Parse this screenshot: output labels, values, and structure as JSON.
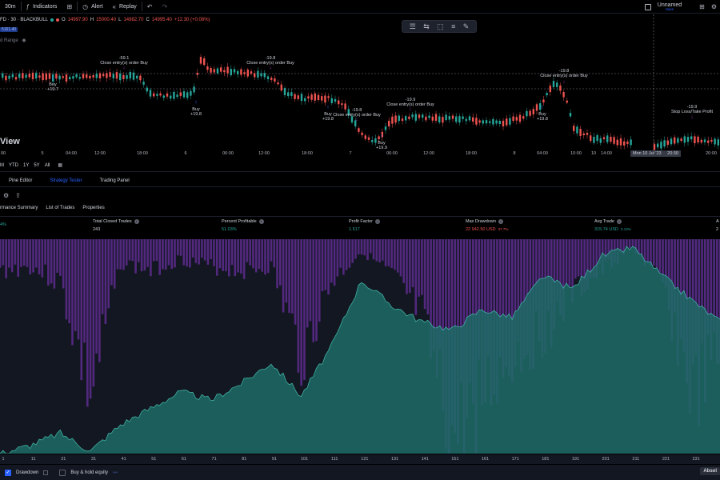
{
  "toolbar": {
    "interval": "30m",
    "indicators": "Indicators",
    "alert": "Alert",
    "replay": "Replay",
    "layout_name": "Unnamed",
    "layout_sub": "Save"
  },
  "legend": {
    "symbol": "FD · 30 · BLACKBULL",
    "o": "O",
    "o_val": "14997.90",
    "h": "H",
    "h_val": "15000.40",
    "l": "L",
    "l_val": "14982.70",
    "c": "C",
    "c_val": "14995.40",
    "change": "+12.30 (+0.08%)",
    "badge": "5161.40",
    "range": "d Range"
  },
  "watermark": "View",
  "annotations": [
    {
      "text": "-59.1",
      "x": 155,
      "y": 56
    },
    {
      "text": "Close entry(s) order Buy",
      "x": 155,
      "y": 62
    },
    {
      "text": "Buy",
      "x": 66,
      "y": 89
    },
    {
      "text": "+19.7",
      "x": 66,
      "y": 95
    },
    {
      "text": "-19.8",
      "x": 338,
      "y": 56
    },
    {
      "text": "Close entry(s) order Buy",
      "x": 338,
      "y": 62
    },
    {
      "text": "Buy",
      "x": 245,
      "y": 120
    },
    {
      "text": "+19.8",
      "x": 245,
      "y": 126
    },
    {
      "text": "-19.9",
      "x": 513,
      "y": 108
    },
    {
      "text": "Close entry(s) order Buy",
      "x": 513,
      "y": 114
    },
    {
      "text": "-19.8",
      "x": 446,
      "y": 121
    },
    {
      "text": "Close entry(s) order Buy",
      "x": 446,
      "y": 127
    },
    {
      "text": "Buy",
      "x": 410,
      "y": 126
    },
    {
      "text": "+19.8",
      "x": 410,
      "y": 132
    },
    {
      "text": "Buy",
      "x": 477,
      "y": 162
    },
    {
      "text": "+19.9",
      "x": 477,
      "y": 168
    },
    {
      "text": "-19.8",
      "x": 705,
      "y": 72
    },
    {
      "text": "Close entry(s) order Buy",
      "x": 705,
      "y": 78
    },
    {
      "text": "Buy",
      "x": 678,
      "y": 126
    },
    {
      "text": "+19.8",
      "x": 678,
      "y": 132
    },
    {
      "text": "-19.9",
      "x": 865,
      "y": 117
    },
    {
      "text": "Stop Loss/Take Profit",
      "x": 865,
      "y": 123
    }
  ],
  "price_axis": [
    {
      "label": "00",
      "x": 4
    },
    {
      "label": "5",
      "x": 53
    },
    {
      "label": "04:00",
      "x": 89
    },
    {
      "label": "12:00",
      "x": 125
    },
    {
      "label": "18:00",
      "x": 178
    },
    {
      "label": "6",
      "x": 232
    },
    {
      "label": "06:00",
      "x": 285
    },
    {
      "label": "12:00",
      "x": 330
    },
    {
      "label": "18:00",
      "x": 384
    },
    {
      "label": "7",
      "x": 438
    },
    {
      "label": "06:00",
      "x": 490
    },
    {
      "label": "12:00",
      "x": 536
    },
    {
      "label": "18:00",
      "x": 589
    },
    {
      "label": "8",
      "x": 643
    },
    {
      "label": "04:00",
      "x": 678
    },
    {
      "label": "10:00",
      "x": 720
    },
    {
      "label": "10",
      "x": 742
    },
    {
      "label": "14:00",
      "x": 758
    },
    {
      "label": "1",
      "x": 848
    },
    {
      "label": "20:00",
      "x": 889
    }
  ],
  "date_tag": "Mon 10 Jul '23",
  "time_tag": "20:30",
  "periods": [
    "M",
    "YTD",
    "1Y",
    "5Y",
    "All"
  ],
  "panel_tabs": [
    "Pine Editor",
    "Strategy Tester",
    "Trading Panel"
  ],
  "sub_tabs": [
    "rmance Summary",
    "List of Trades",
    "Properties"
  ],
  "stats": [
    {
      "label": "",
      "value": "4%",
      "value_color": "green",
      "x": 0
    },
    {
      "label": "Total Closed Trades",
      "value": "243",
      "value_color": "",
      "x": 116
    },
    {
      "label": "Percent Profitable",
      "value": "51.03%",
      "value_color": "green",
      "x": 277
    },
    {
      "label": "Profit Factor",
      "value": "1.517",
      "value_color": "green",
      "x": 436
    },
    {
      "label": "Max Drawdown",
      "value": "22 942.50 USD",
      "extra": "37.7%",
      "value_color": "red",
      "x": 582
    },
    {
      "label": "Avg Trade",
      "value": "315.74 USD",
      "extra": "0.13%",
      "value_color": "green",
      "x": 743
    },
    {
      "label": "A",
      "value": "2",
      "value_color": "",
      "x": 895
    }
  ],
  "equity_axis": [
    "1",
    "11",
    "21",
    "31",
    "41",
    "51",
    "61",
    "71",
    "81",
    "91",
    "101",
    "111",
    "121",
    "131",
    "141",
    "151",
    "161",
    "171",
    "181",
    "191",
    "201",
    "211",
    "221",
    "231"
  ],
  "bottom": {
    "drawdown": "Drawdown",
    "buyhold": "Buy & hold equity",
    "absolute": "Absol"
  },
  "chart_data": {
    "type": "area",
    "title": "",
    "xlabel": "",
    "ylabel": "",
    "x": [
      1,
      11,
      21,
      31,
      41,
      51,
      61,
      71,
      81,
      91,
      101,
      111,
      121,
      131,
      141,
      151,
      161,
      171,
      181,
      191,
      201,
      211,
      221,
      231,
      240
    ],
    "series": [
      {
        "name": "",
        "type": "area",
        "values": [
          0,
          10,
          25,
          3,
          35,
          55,
          75,
          65,
          85,
          110,
          70,
          130,
          210,
          180,
          160,
          150,
          175,
          165,
          215,
          200,
          240,
          250,
          215,
          185,
          160
        ],
        "ylim": [
          0,
          260
        ]
      },
      {
        "name": "",
        "type": "bar",
        "values": [
          40,
          35,
          55,
          200,
          30,
          40,
          25,
          35,
          40,
          35,
          150,
          55,
          15,
          45,
          100,
          260,
          200,
          150,
          120,
          70,
          40,
          10,
          60,
          200,
          150
        ],
        "ylim": [
          0,
          270
        ]
      }
    ],
    "colors": {
      "equity": "#1f6b66",
      "equity_line": "#3fb0a0",
      "drawdown": "#5b2a8a",
      "buyhold": "#3a4a8a"
    }
  }
}
